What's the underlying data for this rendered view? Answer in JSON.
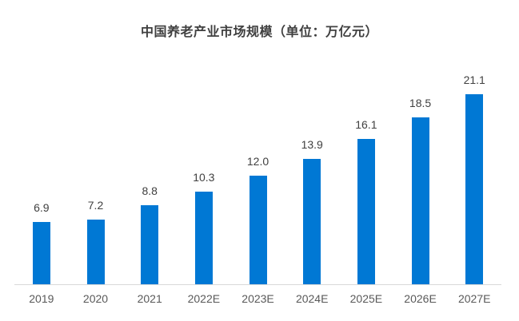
{
  "title": "中国养老产业市场规模（单位：万亿元）",
  "colors": {
    "bar": "#0078d4",
    "title_text": "#404040",
    "data_label_text": "#404040",
    "tick_text": "#595959",
    "axis_line": "#d9d9d9",
    "background": "#ffffff"
  },
  "chart_data": {
    "type": "bar",
    "title": "中国养老产业市场规模（单位：万亿元）",
    "categories": [
      "2019",
      "2020",
      "2021",
      "2022E",
      "2023E",
      "2024E",
      "2025E",
      "2026E",
      "2027E"
    ],
    "values": [
      6.9,
      7.2,
      8.8,
      10.3,
      12.0,
      13.9,
      16.1,
      18.5,
      21.1
    ],
    "data_labels": [
      "6.9",
      "7.2",
      "8.8",
      "10.3",
      "12.0",
      "13.9",
      "16.1",
      "18.5",
      "21.1"
    ],
    "xlabel": "",
    "ylabel": "",
    "ylim": [
      0,
      22
    ],
    "grid": false,
    "legend": "none",
    "data_labels_position": "above-bar"
  }
}
